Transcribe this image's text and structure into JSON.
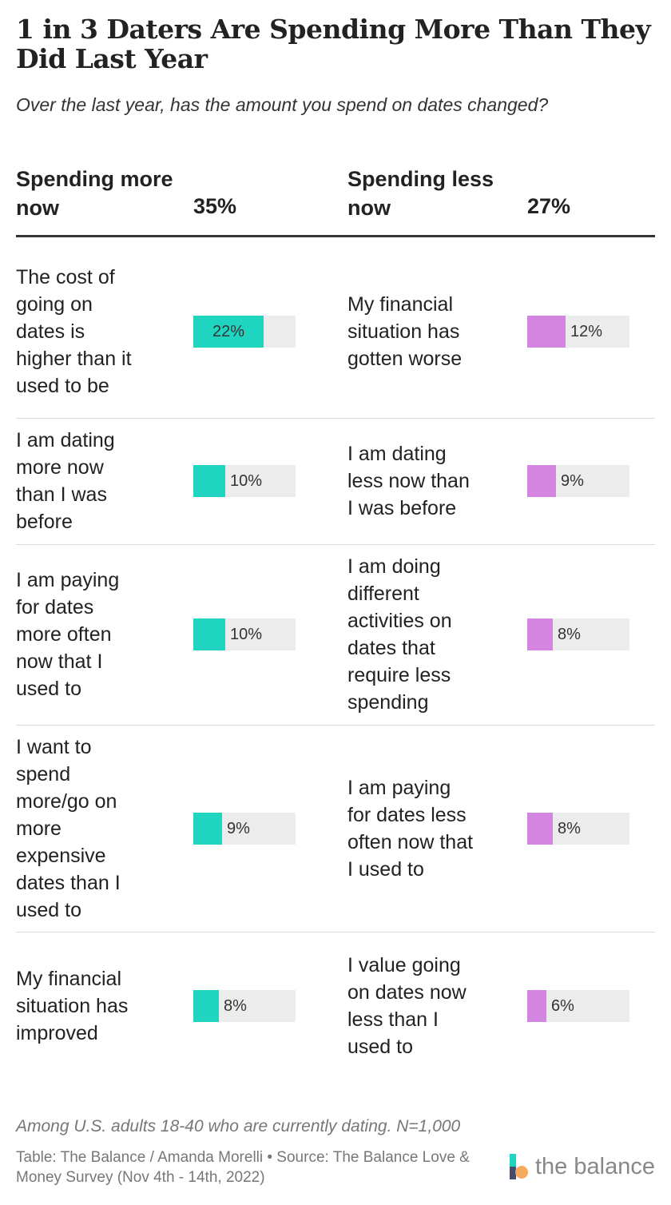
{
  "header": {
    "title": "1 in 3 Daters Are Spending More Than They Did Last Year",
    "subtitle": "Over the last year, has the amount you spend on dates changed?"
  },
  "columns": {
    "left": {
      "heading": "Spending more now",
      "total": "35%"
    },
    "right": {
      "heading": "Spending less now",
      "total": "27%"
    }
  },
  "chart_data": {
    "type": "table",
    "columns": [
      "Spending more now",
      "35%",
      "Spending less now",
      "27%"
    ],
    "series": [
      {
        "name": "Spending more now",
        "color": "#1fd5c0",
        "rows": [
          {
            "reason": "The cost of going on dates is higher than it used to be",
            "value": 22,
            "label": "22%"
          },
          {
            "reason": "I am dating more now than I was before",
            "value": 10,
            "label": "10%"
          },
          {
            "reason": "I am paying for dates more often now that I used to",
            "value": 10,
            "label": "10%"
          },
          {
            "reason": "I want to spend more/go on more expensive dates than I used to",
            "value": 9,
            "label": "9%"
          },
          {
            "reason": "My financial situation has improved",
            "value": 8,
            "label": "8%"
          }
        ]
      },
      {
        "name": "Spending less now",
        "color": "#d386e0",
        "rows": [
          {
            "reason": "My financial situation has gotten worse",
            "value": 12,
            "label": "12%"
          },
          {
            "reason": "I am dating less now than I was before",
            "value": 9,
            "label": "9%"
          },
          {
            "reason": "I am doing different activities on dates that require less spending",
            "value": 8,
            "label": "8%"
          },
          {
            "reason": "I am paying for dates less often now that I used to",
            "value": 8,
            "label": "8%"
          },
          {
            "reason": "I value going on dates now less than I used to",
            "value": 6,
            "label": "6%"
          }
        ]
      }
    ],
    "bar_max": 32
  },
  "footer": {
    "note": "Among U.S. adults 18-40 who are currently dating. N=1,000",
    "source": "Table: The Balance / Amanda Morelli • Source: The Balance Love & Money Survey (Nov 4th - 14th, 2022)",
    "logo_text": "the balance"
  }
}
